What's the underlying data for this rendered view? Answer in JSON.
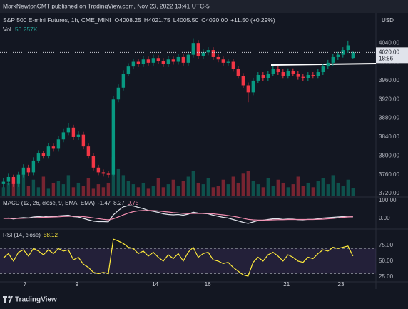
{
  "header": {
    "publisher": "MarkNewtonCMT published on TradingView.com, Nov 23, 2022 13:41 UTC-5"
  },
  "footer": {
    "brand": "TradingView"
  },
  "chart_data": [
    {
      "type": "candlestick",
      "title": "S&P 500 E-mini Futures, 1h, CME_MINI",
      "ohlc": [
        [
          "O",
          "4008.25"
        ],
        [
          "H",
          "4021.75"
        ],
        [
          "L",
          "4005.50"
        ],
        [
          "C",
          "4020.00"
        ]
      ],
      "change": "+11.50 (+0.29%)",
      "currency": "USD",
      "up_color": "#089981",
      "down_color": "#f23645",
      "open": [
        3740,
        3745,
        3755,
        3740,
        3760,
        3775,
        3765,
        3790,
        3805,
        3800,
        3820,
        3815,
        3835,
        3850,
        3860,
        3840,
        3845,
        3820,
        3800,
        3775,
        3765,
        3762,
        3760,
        3920,
        3945,
        3975,
        3990,
        4000,
        3995,
        4005,
        3998,
        4008,
        4002,
        3995,
        4005,
        4000,
        4010,
        3998,
        4015,
        4040,
        4012,
        4020,
        4025,
        4010,
        4005,
        3998,
        4000,
        3985,
        3970,
        3950,
        3935,
        3960,
        3972,
        3965,
        3975,
        3985,
        3978,
        3970,
        3980,
        3975,
        3968,
        3965,
        3972,
        3970,
        3978,
        3990,
        3998,
        4010,
        4015,
        4025,
        4008.25
      ],
      "high": [
        3752,
        3762,
        3760,
        3766,
        3782,
        3781,
        3797,
        3812,
        3811,
        3827,
        3826,
        3842,
        3857,
        3870,
        3866,
        3852,
        3851,
        3826,
        3806,
        3781,
        3771,
        3768,
        3928,
        3952,
        3982,
        3997,
        4007,
        4006,
        4012,
        4011,
        4015,
        4014,
        4008,
        4012,
        4011,
        4017,
        4016,
        4022,
        4050,
        4046,
        4027,
        4031,
        4031,
        4016,
        4011,
        4006,
        4006,
        3991,
        3976,
        3956,
        3966,
        3978,
        3978,
        3981,
        3991,
        3991,
        3984,
        3986,
        3986,
        3981,
        3974,
        3978,
        3978,
        3984,
        3996,
        4004,
        4016,
        4021,
        4031,
        4045,
        4021.75
      ],
      "low": [
        3733,
        3738,
        3734,
        3734,
        3754,
        3758,
        3759,
        3784,
        3794,
        3794,
        3809,
        3809,
        3829,
        3844,
        3834,
        3834,
        3814,
        3794,
        3769,
        3759,
        3756,
        3754,
        3756,
        3914,
        3939,
        3969,
        3984,
        3989,
        3989,
        3992,
        3992,
        3996,
        3989,
        3989,
        3994,
        3994,
        3992,
        3992,
        4009,
        4006,
        4006,
        4014,
        4004,
        3999,
        3992,
        3992,
        3979,
        3964,
        3944,
        3914,
        3929,
        3954,
        3959,
        3959,
        3969,
        3972,
        3964,
        3964,
        3969,
        3962,
        3959,
        3959,
        3964,
        3964,
        3972,
        3984,
        3992,
        4004,
        4009,
        4019,
        4005.5
      ],
      "close": [
        3745,
        3755,
        3740,
        3760,
        3775,
        3765,
        3790,
        3805,
        3800,
        3820,
        3815,
        3835,
        3850,
        3860,
        3840,
        3845,
        3820,
        3800,
        3775,
        3765,
        3762,
        3760,
        3920,
        3945,
        3975,
        3990,
        4000,
        3995,
        4005,
        3998,
        4008,
        4002,
        3995,
        4005,
        4000,
        4010,
        3998,
        4015,
        4040,
        4012,
        4020,
        4025,
        4010,
        4005,
        3998,
        4000,
        3985,
        3970,
        3950,
        3935,
        3960,
        3972,
        3965,
        3975,
        3985,
        3978,
        3970,
        3980,
        3975,
        3968,
        3965,
        3972,
        3970,
        3978,
        3990,
        3998,
        4010,
        4015,
        4025,
        4035,
        4020
      ],
      "volume": {
        "label": "Vol",
        "value_label": "56.257K",
        "values": [
          60,
          90,
          120,
          80,
          150,
          70,
          110,
          60,
          130,
          50,
          90,
          100,
          80,
          140,
          60,
          90,
          70,
          120,
          50,
          80,
          60,
          90,
          260,
          180,
          140,
          100,
          80,
          60,
          90,
          50,
          70,
          120,
          60,
          80,
          110,
          70,
          100,
          130,
          170,
          90,
          80,
          120,
          60,
          70,
          110,
          80,
          130,
          90,
          150,
          170,
          100,
          80,
          60,
          120,
          70,
          110,
          90,
          60,
          80,
          130,
          70,
          90,
          60,
          100,
          120,
          80,
          140,
          90,
          70,
          110,
          56.257
        ]
      },
      "last_price": {
        "value": 4020,
        "label": "4020.00"
      },
      "countdown": "18:56",
      "xlim": [
        -0.7,
        74.6
      ],
      "xticks": [
        {
          "value": 4.3,
          "label": "7"
        },
        {
          "value": 14.7,
          "label": "9"
        },
        {
          "value": 30.4,
          "label": "14"
        },
        {
          "value": 40.9,
          "label": "16"
        },
        {
          "value": 56.7,
          "label": "21"
        },
        {
          "value": 67.6,
          "label": "23"
        }
      ],
      "ylim": [
        3714,
        4104
      ],
      "yticks": [
        {
          "value": 4040,
          "label": "4040.00"
        },
        {
          "value": 4000,
          "label": "4000.00"
        },
        {
          "value": 3960,
          "label": "3960.00"
        },
        {
          "value": 3920,
          "label": "3920.00"
        },
        {
          "value": 3880,
          "label": "3880.00"
        },
        {
          "value": 3840,
          "label": "3840.00"
        },
        {
          "value": 3800,
          "label": "3800.00"
        },
        {
          "value": 3760,
          "label": "3760.00"
        },
        {
          "value": 3720,
          "label": "3720.00"
        }
      ],
      "grid": false
    },
    {
      "type": "line",
      "title": "MACD (12, 26, close, 9, EMA, EMA)",
      "legend_values": [
        -1.47,
        8.27,
        9.75
      ],
      "legend_colors": [
        "#d1d4dc",
        "#d1d4dc",
        "#f48fb1"
      ],
      "series": [
        {
          "color": "#e0e3eb",
          "values": [
            0,
            2,
            -3,
            2,
            5,
            3,
            8,
            10,
            8,
            12,
            10,
            14,
            16,
            18,
            10,
            8,
            0,
            -8,
            -15,
            -18,
            -18,
            -19,
            20,
            45,
            65,
            72,
            70,
            62,
            55,
            45,
            40,
            34,
            26,
            22,
            20,
            22,
            18,
            24,
            35,
            30,
            28,
            26,
            18,
            12,
            6,
            2,
            -6,
            -14,
            -22,
            -28,
            -20,
            -12,
            -10,
            -6,
            -2,
            -2,
            -5,
            -3,
            -4,
            -7,
            -8,
            -5,
            -5,
            -2,
            2,
            4,
            6,
            8,
            10,
            9,
            8.27
          ]
        },
        {
          "color": "#f48fb1",
          "values": [
            0,
            0,
            0,
            0,
            1,
            2,
            3,
            5,
            6,
            7,
            8,
            9,
            11,
            12,
            12,
            12,
            10,
            7,
            3,
            -1,
            -5,
            -8,
            -2,
            8,
            20,
            30,
            38,
            43,
            45,
            45,
            44,
            42,
            39,
            36,
            33,
            31,
            28,
            27,
            28,
            28,
            28,
            28,
            26,
            23,
            20,
            16,
            12,
            7,
            1,
            -5,
            -8,
            -9,
            -9,
            -9,
            -8,
            -7,
            -7,
            -6,
            -6,
            -6,
            -6,
            -6,
            -6,
            -5,
            -4,
            -2,
            0,
            3,
            6,
            8,
            9.75
          ]
        }
      ],
      "ylim": [
        -56,
        116
      ],
      "yticks": [
        {
          "value": 100,
          "label": "100.00"
        },
        {
          "value": 0,
          "label": "0.00"
        }
      ]
    },
    {
      "type": "line",
      "title": "RSI (14, close)",
      "legend_values": [
        58.12
      ],
      "legend_colors": [
        "#ffeb3b"
      ],
      "series": [
        {
          "color": "#ffeb3b",
          "values": [
            55,
            62,
            50,
            64,
            68,
            58,
            70,
            66,
            60,
            68,
            62,
            70,
            66,
            68,
            52,
            56,
            45,
            40,
            32,
            30,
            32,
            30,
            85,
            82,
            78,
            72,
            70,
            62,
            66,
            58,
            64,
            56,
            50,
            60,
            54,
            62,
            50,
            64,
            72,
            56,
            62,
            64,
            52,
            50,
            46,
            48,
            40,
            34,
            28,
            26,
            48,
            56,
            50,
            60,
            64,
            58,
            50,
            60,
            56,
            50,
            48,
            56,
            54,
            62,
            68,
            66,
            72,
            70,
            72,
            74,
            58.12
          ]
        }
      ],
      "bands": [
        30,
        70
      ],
      "ylim": [
        18,
        100
      ],
      "yticks": [
        {
          "value": 75,
          "label": "75.00"
        },
        {
          "value": 50,
          "label": "50.00"
        },
        {
          "value": 25,
          "label": "25.00"
        }
      ]
    }
  ]
}
